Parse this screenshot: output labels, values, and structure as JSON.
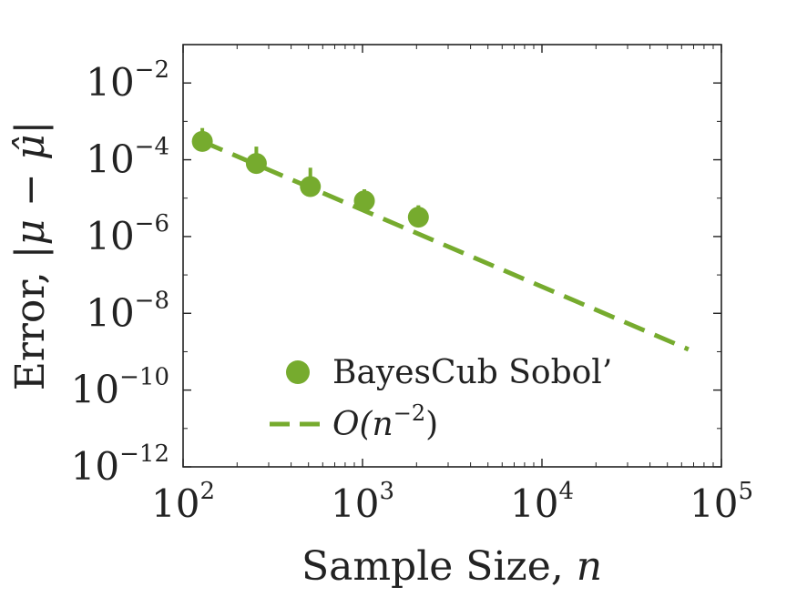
{
  "chart_data": {
    "type": "scatter",
    "title": "",
    "xlabel": "Sample Size, ",
    "xlabel_var": "n",
    "ylabel": "Error, ",
    "ylabel_math": "|μ − μ̂|",
    "xscale": "log",
    "yscale": "log",
    "xlim": [
      100,
      100000
    ],
    "ylim": [
      1e-12,
      0.1
    ],
    "x_ticks": [
      {
        "value": 100,
        "base": "10",
        "exp": "2"
      },
      {
        "value": 1000,
        "base": "10",
        "exp": "3"
      },
      {
        "value": 10000,
        "base": "10",
        "exp": "4"
      },
      {
        "value": 100000,
        "base": "10",
        "exp": "5"
      }
    ],
    "y_ticks": [
      {
        "value": 0.01,
        "base": "10",
        "exp": "−2"
      },
      {
        "value": 0.0001,
        "base": "10",
        "exp": "−4"
      },
      {
        "value": 1e-06,
        "base": "10",
        "exp": "−6"
      },
      {
        "value": 1e-08,
        "base": "10",
        "exp": "−8"
      },
      {
        "value": 1e-10,
        "base": "10",
        "exp": "−10"
      },
      {
        "value": 1e-12,
        "base": "10",
        "exp": "−12"
      }
    ],
    "grid": false,
    "legend_position": "lower-left",
    "color": "#76ab2e",
    "series": [
      {
        "name": "BayesCub Sobol’",
        "kind": "points",
        "x": [
          128,
          256,
          512,
          1024,
          2048
        ],
        "y": [
          0.0003,
          8e-05,
          2e-05,
          8.5e-06,
          3.2e-06
        ],
        "upper": [
          0.00067,
          0.00022,
          6.2e-05,
          1.7e-05,
          6.5e-06
        ]
      },
      {
        "name": "O(n⁻²)",
        "legend_prefix": "O(n",
        "legend_exp": "−2",
        "legend_suffix": ")",
        "kind": "dashed-line",
        "x": [
          128,
          65536
        ],
        "y": [
          0.0003,
          1.15e-09
        ]
      }
    ]
  }
}
